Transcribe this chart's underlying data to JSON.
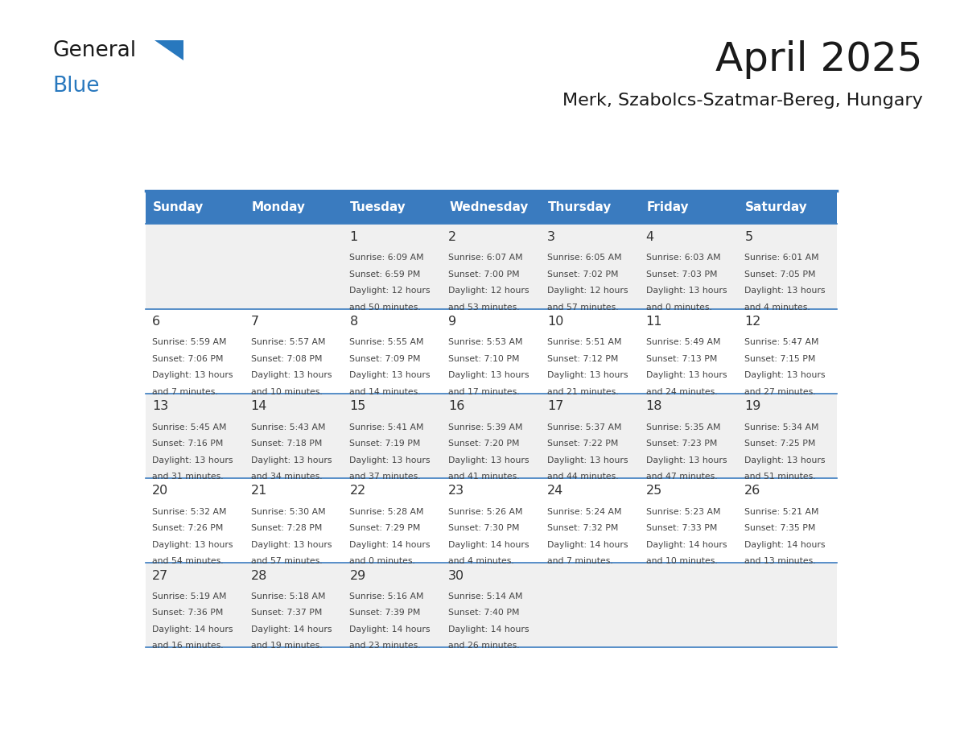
{
  "title": "April 2025",
  "subtitle": "Merk, Szabolcs-Szatmar-Bereg, Hungary",
  "days_of_week": [
    "Sunday",
    "Monday",
    "Tuesday",
    "Wednesday",
    "Thursday",
    "Friday",
    "Saturday"
  ],
  "header_bg": "#3a7bbf",
  "header_text": "#ffffff",
  "row_bg_odd": "#f0f0f0",
  "row_bg_even": "#ffffff",
  "border_color": "#3a7bbf",
  "text_color": "#444444",
  "day_number_color": "#333333",
  "logo_general_color": "#1a1a1a",
  "logo_blue_color": "#2878be",
  "calendar_data": [
    {
      "day": 1,
      "col": 2,
      "row": 0,
      "sunrise": "6:09 AM",
      "sunset": "6:59 PM",
      "daylight": "12 hours and 50 minutes."
    },
    {
      "day": 2,
      "col": 3,
      "row": 0,
      "sunrise": "6:07 AM",
      "sunset": "7:00 PM",
      "daylight": "12 hours and 53 minutes."
    },
    {
      "day": 3,
      "col": 4,
      "row": 0,
      "sunrise": "6:05 AM",
      "sunset": "7:02 PM",
      "daylight": "12 hours and 57 minutes."
    },
    {
      "day": 4,
      "col": 5,
      "row": 0,
      "sunrise": "6:03 AM",
      "sunset": "7:03 PM",
      "daylight": "13 hours and 0 minutes."
    },
    {
      "day": 5,
      "col": 6,
      "row": 0,
      "sunrise": "6:01 AM",
      "sunset": "7:05 PM",
      "daylight": "13 hours and 4 minutes."
    },
    {
      "day": 6,
      "col": 0,
      "row": 1,
      "sunrise": "5:59 AM",
      "sunset": "7:06 PM",
      "daylight": "13 hours and 7 minutes."
    },
    {
      "day": 7,
      "col": 1,
      "row": 1,
      "sunrise": "5:57 AM",
      "sunset": "7:08 PM",
      "daylight": "13 hours and 10 minutes."
    },
    {
      "day": 8,
      "col": 2,
      "row": 1,
      "sunrise": "5:55 AM",
      "sunset": "7:09 PM",
      "daylight": "13 hours and 14 minutes."
    },
    {
      "day": 9,
      "col": 3,
      "row": 1,
      "sunrise": "5:53 AM",
      "sunset": "7:10 PM",
      "daylight": "13 hours and 17 minutes."
    },
    {
      "day": 10,
      "col": 4,
      "row": 1,
      "sunrise": "5:51 AM",
      "sunset": "7:12 PM",
      "daylight": "13 hours and 21 minutes."
    },
    {
      "day": 11,
      "col": 5,
      "row": 1,
      "sunrise": "5:49 AM",
      "sunset": "7:13 PM",
      "daylight": "13 hours and 24 minutes."
    },
    {
      "day": 12,
      "col": 6,
      "row": 1,
      "sunrise": "5:47 AM",
      "sunset": "7:15 PM",
      "daylight": "13 hours and 27 minutes."
    },
    {
      "day": 13,
      "col": 0,
      "row": 2,
      "sunrise": "5:45 AM",
      "sunset": "7:16 PM",
      "daylight": "13 hours and 31 minutes."
    },
    {
      "day": 14,
      "col": 1,
      "row": 2,
      "sunrise": "5:43 AM",
      "sunset": "7:18 PM",
      "daylight": "13 hours and 34 minutes."
    },
    {
      "day": 15,
      "col": 2,
      "row": 2,
      "sunrise": "5:41 AM",
      "sunset": "7:19 PM",
      "daylight": "13 hours and 37 minutes."
    },
    {
      "day": 16,
      "col": 3,
      "row": 2,
      "sunrise": "5:39 AM",
      "sunset": "7:20 PM",
      "daylight": "13 hours and 41 minutes."
    },
    {
      "day": 17,
      "col": 4,
      "row": 2,
      "sunrise": "5:37 AM",
      "sunset": "7:22 PM",
      "daylight": "13 hours and 44 minutes."
    },
    {
      "day": 18,
      "col": 5,
      "row": 2,
      "sunrise": "5:35 AM",
      "sunset": "7:23 PM",
      "daylight": "13 hours and 47 minutes."
    },
    {
      "day": 19,
      "col": 6,
      "row": 2,
      "sunrise": "5:34 AM",
      "sunset": "7:25 PM",
      "daylight": "13 hours and 51 minutes."
    },
    {
      "day": 20,
      "col": 0,
      "row": 3,
      "sunrise": "5:32 AM",
      "sunset": "7:26 PM",
      "daylight": "13 hours and 54 minutes."
    },
    {
      "day": 21,
      "col": 1,
      "row": 3,
      "sunrise": "5:30 AM",
      "sunset": "7:28 PM",
      "daylight": "13 hours and 57 minutes."
    },
    {
      "day": 22,
      "col": 2,
      "row": 3,
      "sunrise": "5:28 AM",
      "sunset": "7:29 PM",
      "daylight": "14 hours and 0 minutes."
    },
    {
      "day": 23,
      "col": 3,
      "row": 3,
      "sunrise": "5:26 AM",
      "sunset": "7:30 PM",
      "daylight": "14 hours and 4 minutes."
    },
    {
      "day": 24,
      "col": 4,
      "row": 3,
      "sunrise": "5:24 AM",
      "sunset": "7:32 PM",
      "daylight": "14 hours and 7 minutes."
    },
    {
      "day": 25,
      "col": 5,
      "row": 3,
      "sunrise": "5:23 AM",
      "sunset": "7:33 PM",
      "daylight": "14 hours and 10 minutes."
    },
    {
      "day": 26,
      "col": 6,
      "row": 3,
      "sunrise": "5:21 AM",
      "sunset": "7:35 PM",
      "daylight": "14 hours and 13 minutes."
    },
    {
      "day": 27,
      "col": 0,
      "row": 4,
      "sunrise": "5:19 AM",
      "sunset": "7:36 PM",
      "daylight": "14 hours and 16 minutes."
    },
    {
      "day": 28,
      "col": 1,
      "row": 4,
      "sunrise": "5:18 AM",
      "sunset": "7:37 PM",
      "daylight": "14 hours and 19 minutes."
    },
    {
      "day": 29,
      "col": 2,
      "row": 4,
      "sunrise": "5:16 AM",
      "sunset": "7:39 PM",
      "daylight": "14 hours and 23 minutes."
    },
    {
      "day": 30,
      "col": 3,
      "row": 4,
      "sunrise": "5:14 AM",
      "sunset": "7:40 PM",
      "daylight": "14 hours and 26 minutes."
    }
  ]
}
